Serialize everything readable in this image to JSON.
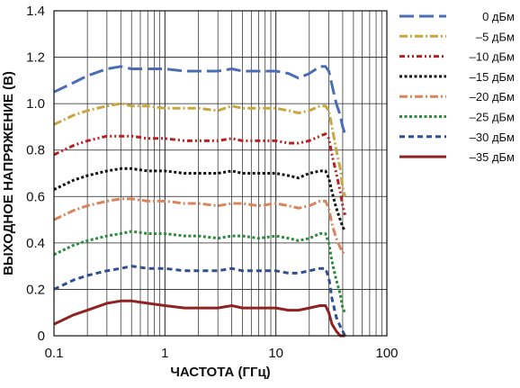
{
  "chart_data": {
    "type": "line",
    "title": "",
    "xlabel": "ЧАСТОТА (ГГц)",
    "ylabel": "ВЫХОДНОЕ НАПРЯЖЕНИЕ (В)",
    "x_scale": "log",
    "xlim": [
      0.1,
      100
    ],
    "ylim": [
      0,
      1.4
    ],
    "x_ticks": [
      "0.1",
      "1",
      "10",
      "100"
    ],
    "y_ticks": [
      "0",
      "0.2",
      "0.4",
      "0.6",
      "0.8",
      "1.0",
      "1.2",
      "1.4"
    ],
    "grid": true,
    "legend_position": "right",
    "x": [
      0.1,
      0.15,
      0.2,
      0.3,
      0.4,
      0.5,
      0.7,
      1,
      1.5,
      2,
      3,
      4,
      5,
      7,
      10,
      13,
      16,
      20,
      25,
      28,
      30,
      32,
      35,
      38,
      40,
      42
    ],
    "series": [
      {
        "name": "0 дБм",
        "color": "#4a6db5",
        "dash": "long-dash",
        "values": [
          1.05,
          1.09,
          1.12,
          1.15,
          1.16,
          1.15,
          1.15,
          1.15,
          1.14,
          1.14,
          1.14,
          1.15,
          1.14,
          1.14,
          1.14,
          1.13,
          1.11,
          1.13,
          1.16,
          1.16,
          1.14,
          1.08,
          1.0,
          0.95,
          0.9,
          0.87
        ]
      },
      {
        "name": "–5 дБм",
        "color": "#c8a640",
        "dash": "dash-dot",
        "values": [
          0.91,
          0.95,
          0.97,
          0.99,
          1.0,
          0.99,
          0.99,
          0.98,
          0.98,
          0.98,
          0.97,
          0.99,
          0.98,
          0.98,
          0.98,
          0.97,
          0.96,
          0.97,
          0.99,
          0.99,
          0.97,
          0.9,
          0.8,
          0.72,
          0.64,
          0.6
        ]
      },
      {
        "name": "–10 дБм",
        "color": "#b52222",
        "dash": "dash-dot-dot",
        "values": [
          0.78,
          0.82,
          0.84,
          0.86,
          0.86,
          0.86,
          0.85,
          0.85,
          0.84,
          0.84,
          0.84,
          0.85,
          0.84,
          0.84,
          0.84,
          0.83,
          0.83,
          0.84,
          0.86,
          0.87,
          0.85,
          0.78,
          0.7,
          0.62,
          0.56,
          0.52
        ]
      },
      {
        "name": "–15 дБм",
        "color": "#111111",
        "dash": "dots",
        "values": [
          0.63,
          0.67,
          0.69,
          0.71,
          0.72,
          0.72,
          0.71,
          0.71,
          0.7,
          0.7,
          0.7,
          0.71,
          0.7,
          0.7,
          0.7,
          0.69,
          0.68,
          0.7,
          0.71,
          0.71,
          0.68,
          0.62,
          0.55,
          0.5,
          0.47,
          0.45
        ]
      },
      {
        "name": "–20 дБм",
        "color": "#d9845a",
        "dash": "dash-dot",
        "values": [
          0.5,
          0.54,
          0.56,
          0.58,
          0.59,
          0.59,
          0.58,
          0.58,
          0.57,
          0.57,
          0.56,
          0.57,
          0.57,
          0.56,
          0.57,
          0.56,
          0.55,
          0.56,
          0.58,
          0.58,
          0.55,
          0.48,
          0.42,
          0.38,
          0.36,
          0.35
        ]
      },
      {
        "name": "–25 дБм",
        "color": "#2e8b3e",
        "dash": "dots",
        "values": [
          0.35,
          0.39,
          0.41,
          0.43,
          0.44,
          0.45,
          0.44,
          0.44,
          0.43,
          0.43,
          0.42,
          0.43,
          0.43,
          0.42,
          0.43,
          0.42,
          0.41,
          0.42,
          0.44,
          0.44,
          0.4,
          0.32,
          0.24,
          0.18,
          0.12,
          0.1
        ]
      },
      {
        "name": "–30 дБм",
        "color": "#2f4f8f",
        "dash": "short-dash",
        "values": [
          0.2,
          0.24,
          0.26,
          0.28,
          0.29,
          0.3,
          0.29,
          0.29,
          0.28,
          0.28,
          0.28,
          0.29,
          0.28,
          0.28,
          0.28,
          0.27,
          0.27,
          0.28,
          0.29,
          0.29,
          0.25,
          0.16,
          0.08,
          0.04,
          0.02,
          0.0
        ]
      },
      {
        "name": "–35 дБм",
        "color": "#8f2222",
        "dash": "solid",
        "values": [
          0.05,
          0.09,
          0.11,
          0.14,
          0.15,
          0.15,
          0.14,
          0.13,
          0.12,
          0.12,
          0.12,
          0.13,
          0.12,
          0.12,
          0.12,
          0.11,
          0.11,
          0.12,
          0.13,
          0.13,
          0.1,
          0.05,
          0.02,
          0.0,
          0.0,
          0.0
        ]
      }
    ]
  }
}
